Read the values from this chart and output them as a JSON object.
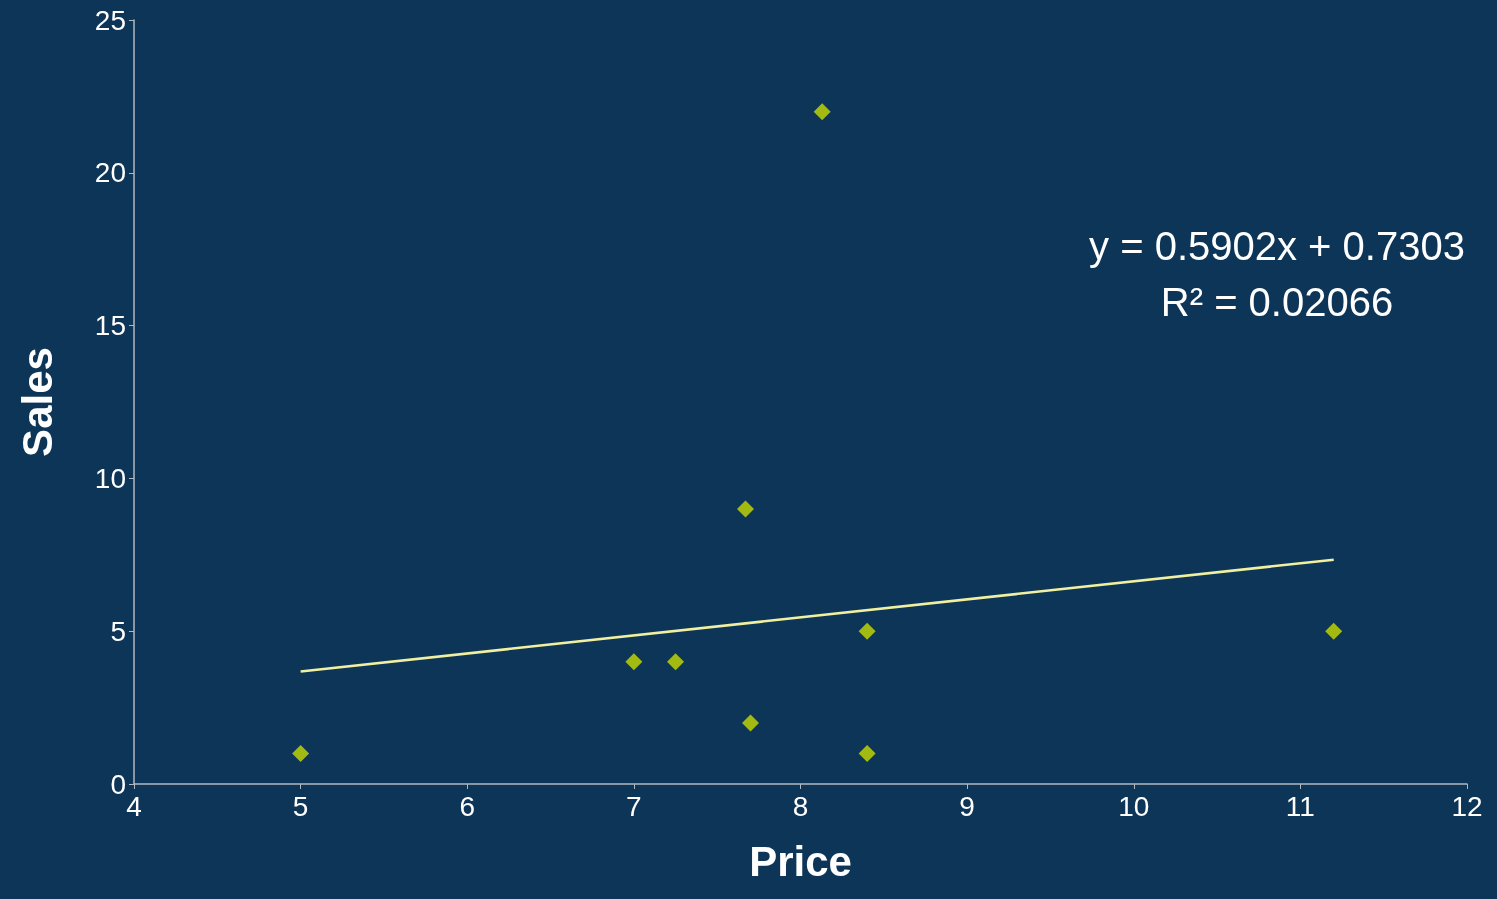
{
  "chart_data": {
    "type": "scatter",
    "xlabel": "Price",
    "ylabel": "Sales",
    "series": [
      {
        "color": "#c8dc00",
        "x": [
          5,
          7,
          7.25,
          7.67,
          8.13,
          7.7,
          8.4,
          8.4,
          11.2
        ],
        "values": [
          1,
          4,
          4,
          9,
          22,
          2,
          5,
          1,
          5
        ]
      },
      {
        "type": "line",
        "color": "#f0f0a0",
        "marker": "none",
        "x": [
          5,
          11.2
        ],
        "values": [
          3.68,
          7.34
        ]
      }
    ],
    "xlim": [
      4,
      12
    ],
    "xticks": [
      4,
      5,
      6,
      7,
      8,
      9,
      10,
      11,
      12
    ],
    "ylim": [
      0,
      25
    ],
    "yticks": [
      0,
      5,
      10,
      15,
      20,
      25
    ],
    "grid": false,
    "marker": "diamond",
    "line_style": "solid",
    "annotations": [
      "y = 0.5902x + 0.7303",
      "R² = 0.02066"
    ]
  }
}
